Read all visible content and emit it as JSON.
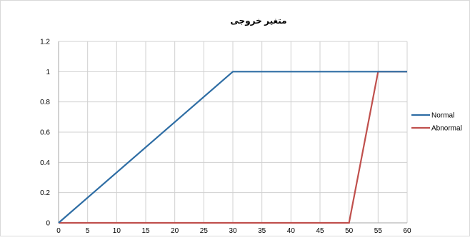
{
  "chart_data": {
    "type": "line",
    "title": "متغیر خروجی",
    "xlabel": "",
    "ylabel": "",
    "xlim": [
      0,
      60
    ],
    "ylim": [
      0,
      1.2
    ],
    "xticks": [
      0,
      5,
      10,
      15,
      20,
      25,
      30,
      35,
      40,
      45,
      50,
      55,
      60
    ],
    "yticks": [
      0,
      0.2,
      0.4,
      0.6,
      0.8,
      1,
      1.2
    ],
    "grid": true,
    "legend_position": "right",
    "series": [
      {
        "name": "Normal",
        "color": "#2e6da4",
        "x": [
          0,
          30,
          60
        ],
        "y": [
          0,
          1,
          1
        ]
      },
      {
        "name": "Abnormal",
        "color": "#c0504d",
        "x": [
          0,
          50,
          55,
          60
        ],
        "y": [
          0,
          0,
          1,
          1
        ]
      }
    ]
  }
}
